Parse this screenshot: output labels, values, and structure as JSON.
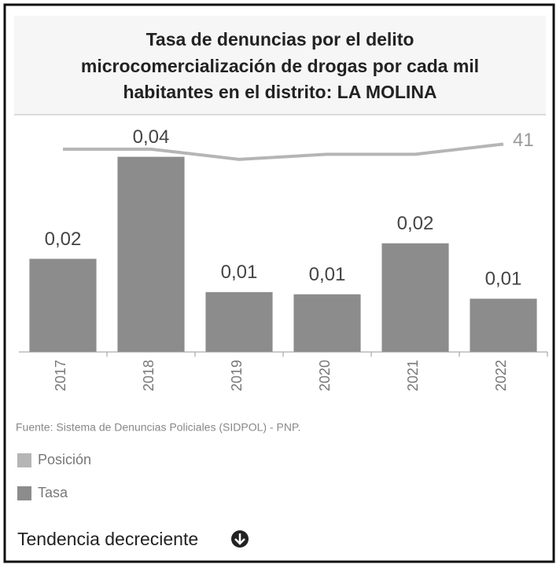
{
  "chart_data": {
    "type": "bar",
    "title": [
      "Tasa de denuncias por el delito",
      "microcomercialización de drogas por cada mil",
      "habitantes en el distrito: LA MOLINA"
    ],
    "categories": [
      "2017",
      "2018",
      "2019",
      "2020",
      "2021",
      "2022"
    ],
    "series": [
      {
        "name": "Posición",
        "type": "line",
        "axis": "y2",
        "color": "#b5b5b5",
        "values": [
          40,
          40,
          38,
          39,
          39,
          41
        ]
      },
      {
        "name": "Tasa",
        "type": "bar",
        "color": "#8c8c8c",
        "values": [
          0.021,
          0.044,
          0.0135,
          0.013,
          0.0245,
          0.012
        ],
        "value_labels": [
          "0,02",
          "0,04",
          "0,01",
          "0,01",
          "0,02",
          "0,01"
        ]
      }
    ],
    "ylim": [
      0,
      0.048
    ],
    "y2lim": [
      0,
      42
    ],
    "source": "Fuente: Sistema de Denuncias Policiales (SIDPOL) - PNP.",
    "trend": "Tendencia decreciente"
  }
}
